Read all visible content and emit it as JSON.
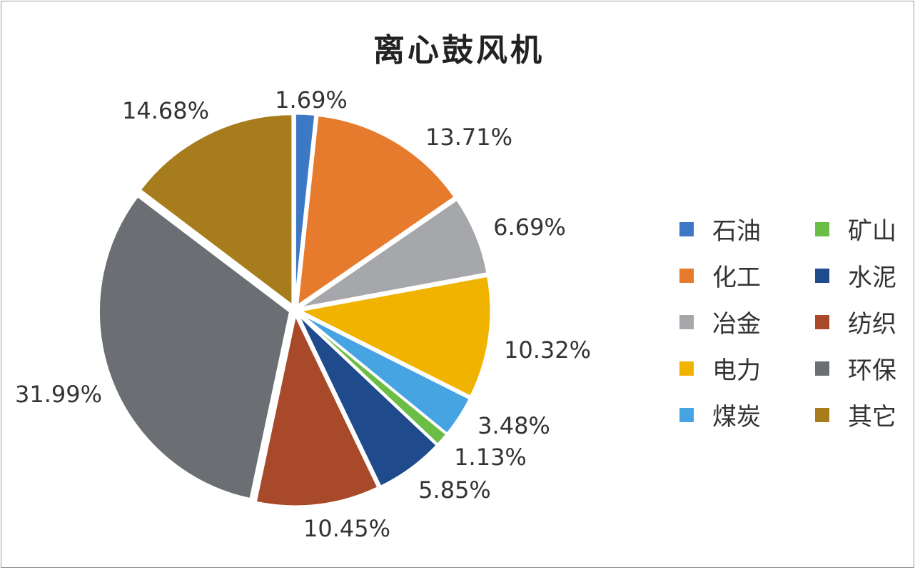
{
  "chart_data": {
    "type": "pie",
    "title": "离心鼓风机",
    "slices": [
      {
        "label": "石油",
        "value": 1.69,
        "display": "1.69%",
        "color": "#3d78c4"
      },
      {
        "label": "化工",
        "value": 13.71,
        "display": "13.71%",
        "color": "#e67b2e"
      },
      {
        "label": "冶金",
        "value": 6.69,
        "display": "6.69%",
        "color": "#a5a7aa"
      },
      {
        "label": "电力",
        "value": 10.32,
        "display": "10.32%",
        "color": "#f0b400"
      },
      {
        "label": "煤炭",
        "value": 3.48,
        "display": "3.48%",
        "color": "#46a4e2"
      },
      {
        "label": "矿山",
        "value": 1.13,
        "display": "1.13%",
        "color": "#6cbd45"
      },
      {
        "label": "水泥",
        "value": 5.85,
        "display": "5.85%",
        "color": "#1f4a8c"
      },
      {
        "label": "纺织",
        "value": 10.45,
        "display": "10.45%",
        "color": "#a8492a"
      },
      {
        "label": "环保",
        "value": 31.99,
        "display": "31.99%",
        "color": "#6b6e72"
      },
      {
        "label": "其它",
        "value": 14.68,
        "display": "14.68%",
        "color": "#a67c1d"
      }
    ],
    "legend_position": "right"
  }
}
